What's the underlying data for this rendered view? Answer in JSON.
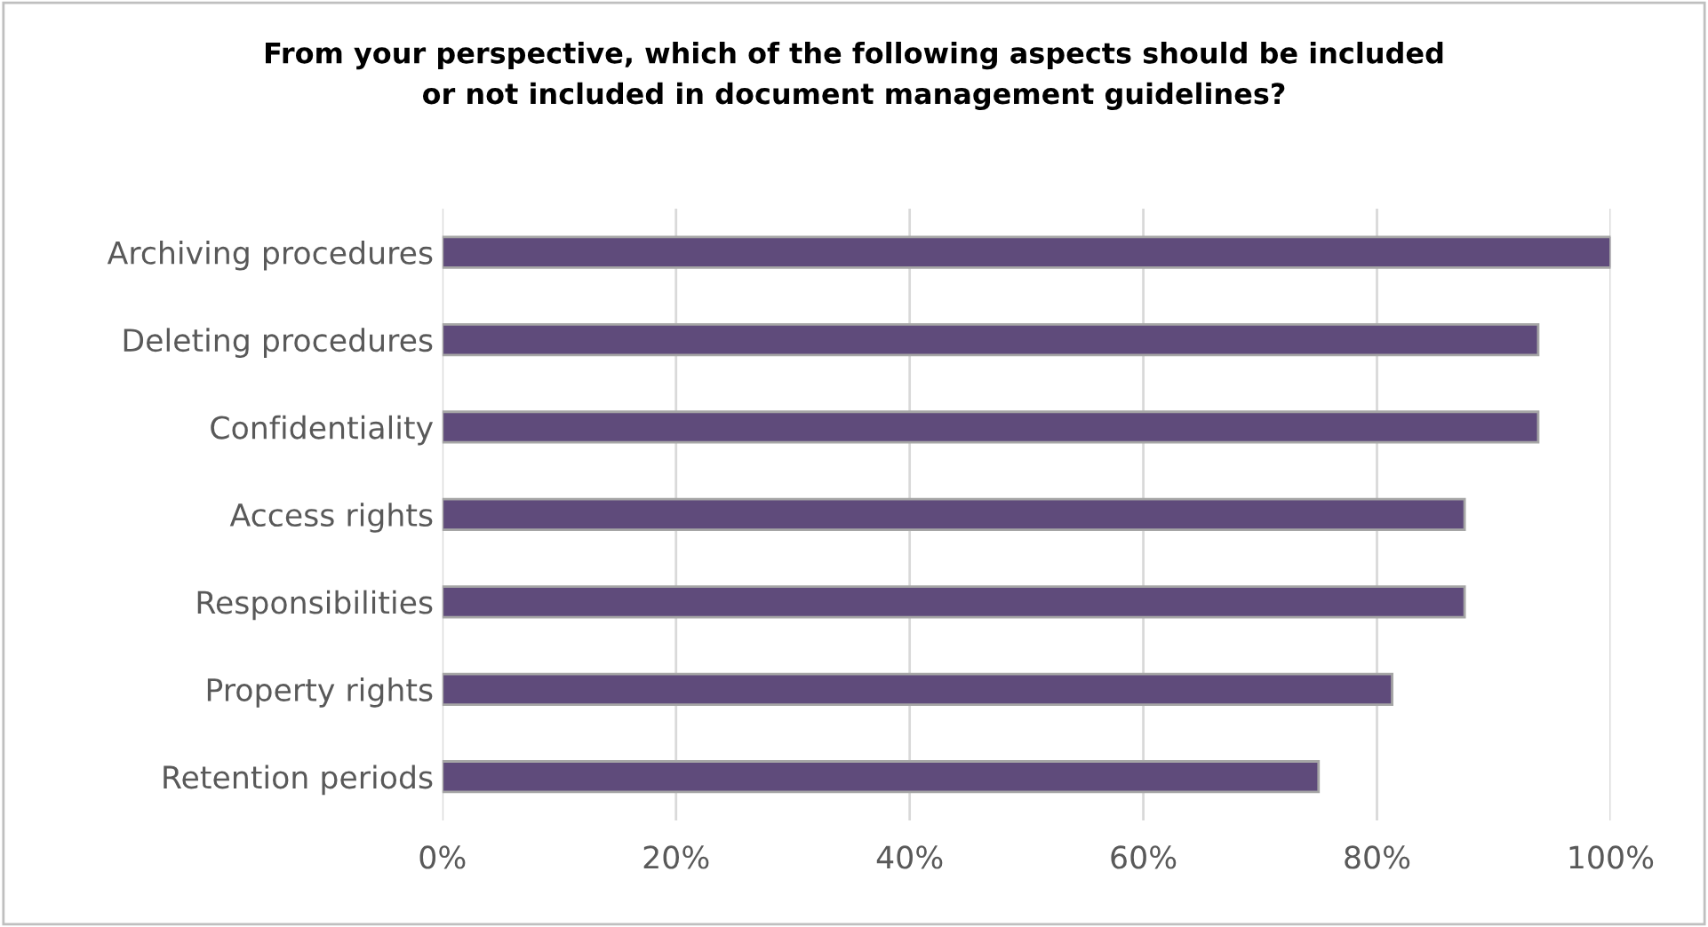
{
  "chart_data": {
    "type": "bar",
    "orientation": "horizontal",
    "title": "From your perspective, which of the following aspects should be included\nor not included in document management guidelines?",
    "categories": [
      "Archiving procedures",
      "Deleting procedures",
      "Confidentiality",
      "Access rights",
      "Responsibilities",
      "Property rights",
      "Retention periods"
    ],
    "values": [
      100,
      93.8,
      93.8,
      87.5,
      87.5,
      81.3,
      75
    ],
    "color": "#5f4b7b",
    "xlim": [
      0,
      100
    ],
    "xticks": [
      {
        "value": 0,
        "label": "0%"
      },
      {
        "value": 20,
        "label": "20%"
      },
      {
        "value": 40,
        "label": "40%"
      },
      {
        "value": 60,
        "label": "60%"
      },
      {
        "value": 80,
        "label": "80%"
      },
      {
        "value": 100,
        "label": "100%"
      }
    ],
    "grid": "x"
  }
}
